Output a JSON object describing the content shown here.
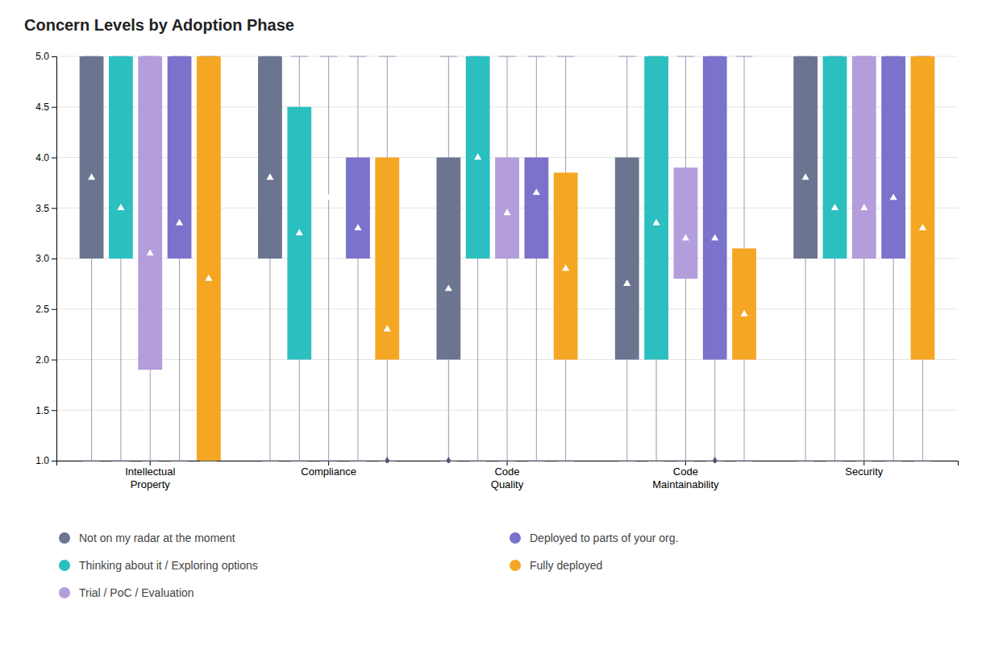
{
  "chart_data": {
    "type": "box",
    "title": "Concern Levels by Adoption Phase",
    "categories": [
      "Intellectual\nProperty",
      "Compliance",
      "Code\nQuality",
      "Code\nMaintainability",
      "Security"
    ],
    "series": [
      {
        "name": "Not on my radar at the moment",
        "color": "#6b7590",
        "box_bottom": [
          3.0,
          3.0,
          2.0,
          2.0,
          3.0
        ],
        "box_top": [
          5.0,
          5.0,
          4.0,
          4.0,
          5.0
        ],
        "whisker_low": [
          1.0,
          1.0,
          1.0,
          1.0,
          1.0
        ],
        "whisker_high": [
          5.0,
          5.0,
          5.0,
          5.0,
          5.0
        ],
        "median": [
          3.8,
          3.8,
          2.7,
          2.75,
          3.8
        ],
        "outliers": [
          null,
          null,
          1.0,
          null,
          null
        ]
      },
      {
        "name": "Thinking about it / Exploring options",
        "color": "#2bbfc0",
        "box_bottom": [
          3.0,
          2.0,
          3.0,
          2.0,
          3.0
        ],
        "box_top": [
          5.0,
          4.5,
          5.0,
          5.0,
          5.0
        ],
        "whisker_low": [
          1.0,
          1.0,
          1.0,
          1.0,
          1.0
        ],
        "whisker_high": [
          5.0,
          5.0,
          5.0,
          5.0,
          5.0
        ],
        "median": [
          3.5,
          3.25,
          4.0,
          3.35,
          3.5
        ]
      },
      {
        "name": "Trial / PoC / Evaluation",
        "color": "#b39ddb",
        "box_bottom": [
          1.9,
          5.0,
          3.0,
          2.8,
          3.0
        ],
        "box_top": [
          5.0,
          5.0,
          4.0,
          3.9,
          5.0
        ],
        "whisker_low": [
          1.0,
          1.0,
          1.0,
          1.0,
          1.0
        ],
        "whisker_high": [
          5.0,
          5.0,
          5.0,
          5.0,
          5.0
        ],
        "median": [
          3.05,
          3.6,
          3.45,
          3.2,
          3.5
        ]
      },
      {
        "name": "Deployed to parts of your org.",
        "color": "#7b72cc",
        "box_bottom": [
          3.0,
          3.0,
          3.0,
          2.0,
          3.0
        ],
        "box_top": [
          5.0,
          4.0,
          4.0,
          5.0,
          5.0
        ],
        "whisker_low": [
          1.0,
          1.0,
          1.0,
          1.0,
          1.0
        ],
        "whisker_high": [
          5.0,
          5.0,
          5.0,
          5.0,
          5.0
        ],
        "median": [
          3.35,
          3.3,
          3.65,
          3.2,
          3.6
        ],
        "outliers": [
          null,
          null,
          null,
          1.0,
          null
        ]
      },
      {
        "name": "Fully deployed",
        "color": "#f5a623",
        "box_bottom": [
          1.0,
          2.0,
          2.0,
          2.0,
          2.0
        ],
        "box_top": [
          5.0,
          4.0,
          3.85,
          3.1,
          5.0
        ],
        "whisker_low": [
          1.0,
          1.0,
          1.0,
          1.0,
          1.0
        ],
        "whisker_high": [
          5.0,
          5.0,
          5.0,
          5.0,
          5.0
        ],
        "median": [
          2.8,
          2.3,
          2.9,
          2.45,
          3.3
        ],
        "outliers": [
          null,
          1.0,
          null,
          null,
          null
        ]
      }
    ],
    "ylim": [
      1.0,
      5.0
    ],
    "yticks": [
      {
        "value": 1.0,
        "label": "1.0"
      },
      1.5,
      {
        "value": 2.0,
        "label": "2.0"
      },
      2.5,
      {
        "value": 3.0,
        "label": "3.0"
      },
      3.5,
      {
        "value": 4.0,
        "label": "4.0"
      },
      4.5,
      {
        "value": 5.0,
        "label": "5.0"
      }
    ],
    "grid": true,
    "legend": "bottom"
  }
}
